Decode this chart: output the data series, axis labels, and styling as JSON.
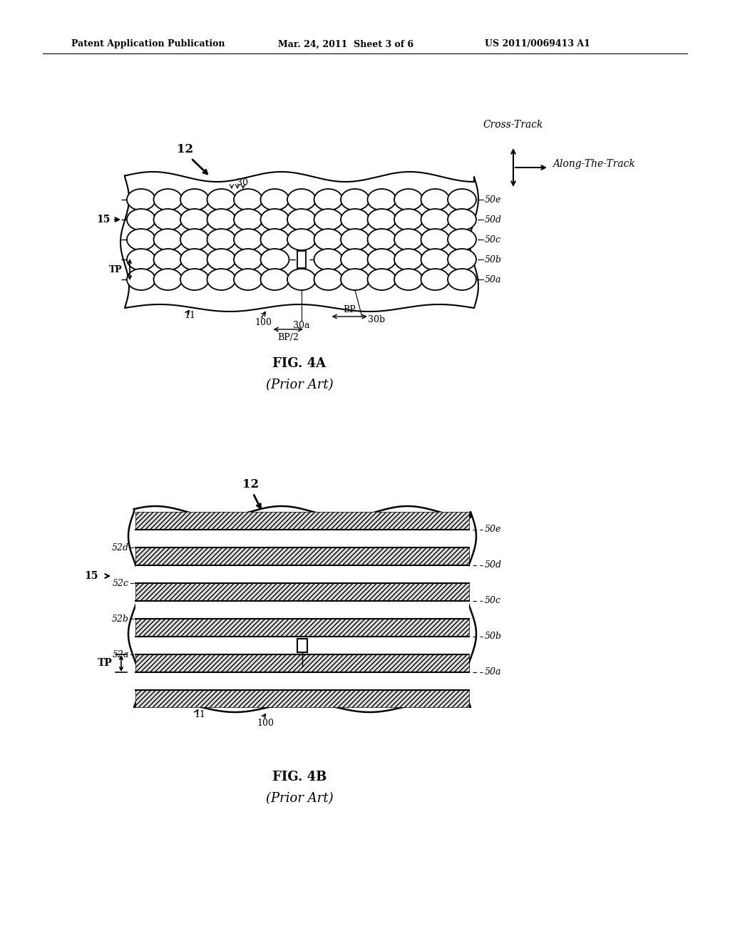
{
  "bg_color": "#ffffff",
  "header_line1": "Patent Application Publication",
  "header_line2": "Mar. 24, 2011  Sheet 3 of 6",
  "header_line3": "US 2011/0069413 A1",
  "fig4a_title": "FIG. 4A",
  "fig4a_sub": "(Prior Art)",
  "fig4b_title": "FIG. 4B",
  "fig4b_sub": "(Prior Art)",
  "cross_track": "Cross-Track",
  "along_track": "Along-The-Track"
}
